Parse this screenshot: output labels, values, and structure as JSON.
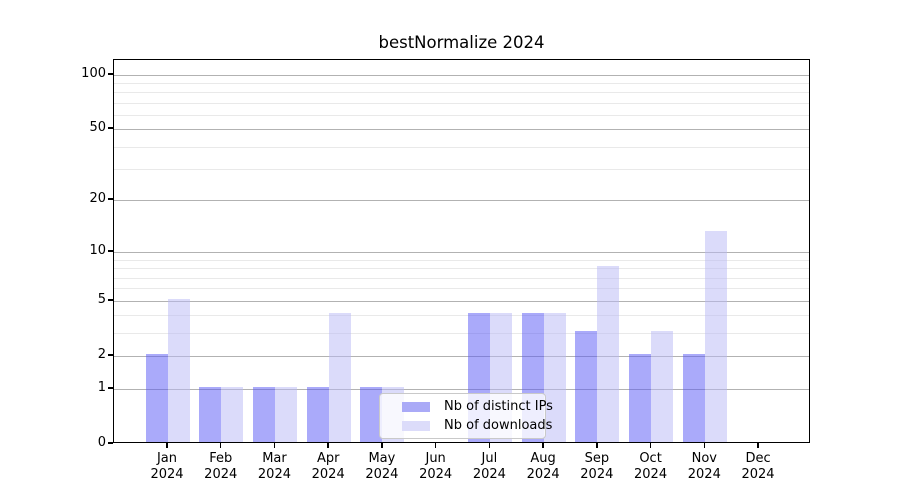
{
  "title": "bestNormalize 2024",
  "chart_data": {
    "type": "bar",
    "title": "bestNormalize 2024",
    "scale": "log1p",
    "grid": "on",
    "ylim": [
      0,
      120
    ],
    "yticks": [
      0,
      1,
      2,
      5,
      10,
      20,
      50,
      100
    ],
    "minor_gridlines": [
      3,
      4,
      6,
      7,
      8,
      9,
      30,
      40,
      60,
      70,
      80,
      90
    ],
    "categories": [
      {
        "month": "Jan",
        "year": "2024"
      },
      {
        "month": "Feb",
        "year": "2024"
      },
      {
        "month": "Mar",
        "year": "2024"
      },
      {
        "month": "Apr",
        "year": "2024"
      },
      {
        "month": "May",
        "year": "2024"
      },
      {
        "month": "Jun",
        "year": "2024"
      },
      {
        "month": "Jul",
        "year": "2024"
      },
      {
        "month": "Aug",
        "year": "2024"
      },
      {
        "month": "Sep",
        "year": "2024"
      },
      {
        "month": "Oct",
        "year": "2024"
      },
      {
        "month": "Nov",
        "year": "2024"
      },
      {
        "month": "Dec",
        "year": "2024"
      }
    ],
    "series": [
      {
        "name": "Nb of distinct IPs",
        "fill": "rgba(85,85,245,0.5)",
        "swatch": "#aaaaf7",
        "values": [
          2,
          1,
          1,
          1,
          1,
          0,
          4,
          4,
          3,
          2,
          2,
          0
        ]
      },
      {
        "name": "Nb of downloads",
        "fill": "rgba(183,183,245,0.5)",
        "swatch": "#dcdcfa",
        "values": [
          5,
          1,
          1,
          4,
          1,
          0,
          4,
          4,
          8,
          3,
          13,
          0
        ]
      }
    ],
    "legend_position": "lower center",
    "colors": {
      "axis": "#000000",
      "major_grid": "#b2b2b2",
      "minor_grid": "#e9e9e9",
      "background": "#ffffff",
      "text": "#000000"
    }
  }
}
